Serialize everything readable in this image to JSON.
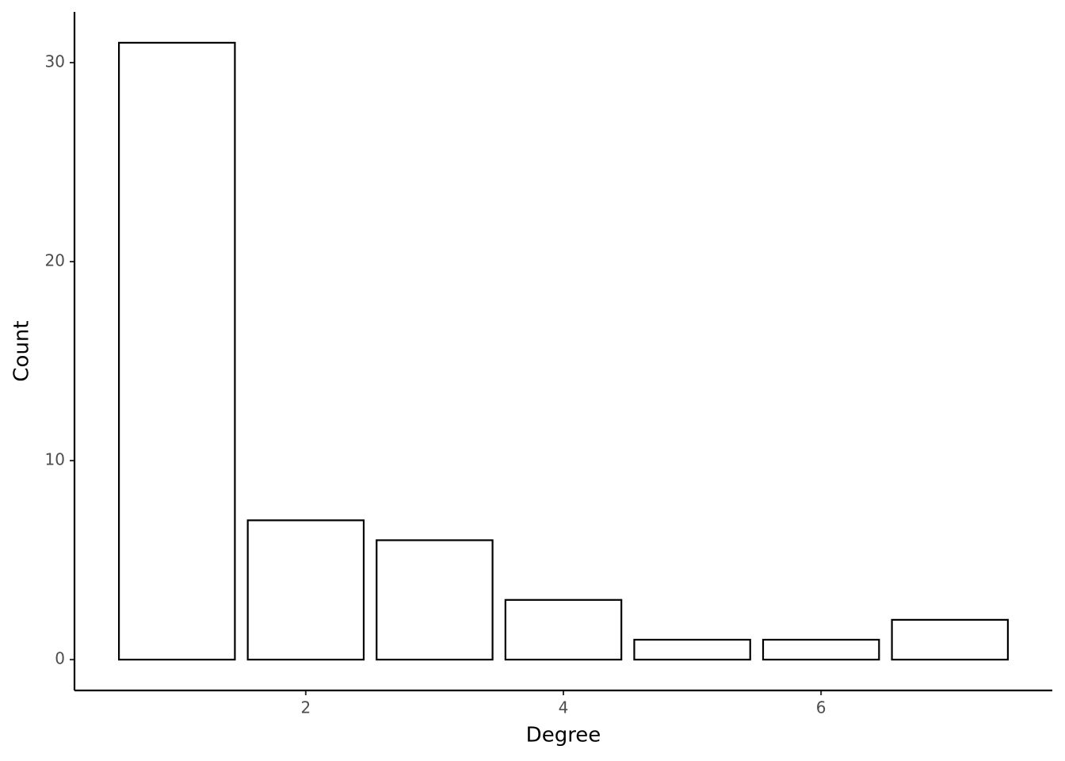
{
  "chart_data": {
    "type": "bar",
    "x_label": "Degree",
    "y_label": "Count",
    "x": [
      1,
      2,
      3,
      4,
      5,
      6,
      7
    ],
    "values": [
      31,
      7,
      6,
      3,
      1,
      1,
      2
    ],
    "color": "#ffffff",
    "edge_color": "#000000",
    "xlim": [
      0.205,
      7.795
    ],
    "xticks": [
      2,
      4,
      6
    ],
    "ylim": [
      -1.55,
      32.55
    ],
    "yticks": [
      0,
      10,
      20,
      30
    ],
    "grid": false
  }
}
